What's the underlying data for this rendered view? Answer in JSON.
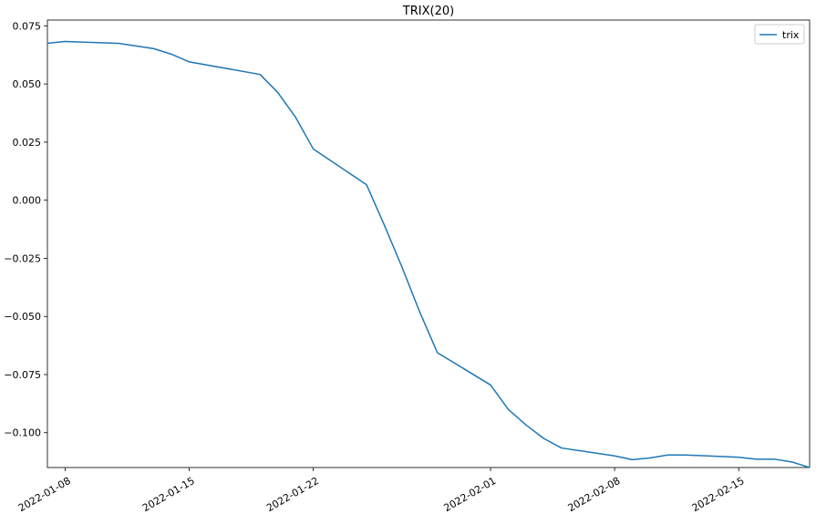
{
  "chart_data": {
    "type": "line",
    "title": "TRIX(20)",
    "xlabel": "",
    "ylabel": "",
    "x_axis_kind": "date",
    "xlim": [
      "2022-01-07",
      "2022-02-19"
    ],
    "ylim": [
      -0.115,
      0.0775
    ],
    "x_ticks": [
      "2022-01-08",
      "2022-01-15",
      "2022-01-22",
      "2022-02-01",
      "2022-02-08",
      "2022-02-15"
    ],
    "y_ticks": [
      0.075,
      0.05,
      0.025,
      0.0,
      -0.025,
      -0.05,
      -0.075,
      -0.1
    ],
    "y_tick_labels": [
      "0.075",
      "0.050",
      "0.025",
      "0.000",
      "−0.025",
      "−0.050",
      "−0.075",
      "−0.100"
    ],
    "legend": {
      "position": "top-right",
      "entries": [
        "trix"
      ]
    },
    "grid": false,
    "series": [
      {
        "name": "trix",
        "color": "#1f77b4",
        "points": [
          [
            "2022-01-07",
            0.0675
          ],
          [
            "2022-01-08",
            0.0683
          ],
          [
            "2022-01-11",
            0.0675
          ],
          [
            "2022-01-13",
            0.0652
          ],
          [
            "2022-01-14",
            0.0628
          ],
          [
            "2022-01-15",
            0.0595
          ],
          [
            "2022-01-19",
            0.0541
          ],
          [
            "2022-01-20",
            0.0463
          ],
          [
            "2022-01-21",
            0.0357
          ],
          [
            "2022-01-22",
            0.022
          ],
          [
            "2022-01-25",
            0.0067
          ],
          [
            "2022-01-26",
            -0.0106
          ],
          [
            "2022-01-27",
            -0.0287
          ],
          [
            "2022-01-28",
            -0.048
          ],
          [
            "2022-01-29",
            -0.0656
          ],
          [
            "2022-02-01",
            -0.0795
          ],
          [
            "2022-02-02",
            -0.09
          ],
          [
            "2022-02-03",
            -0.0967
          ],
          [
            "2022-02-04",
            -0.1025
          ],
          [
            "2022-02-05",
            -0.1066
          ],
          [
            "2022-02-08",
            -0.11
          ],
          [
            "2022-02-09",
            -0.1116
          ],
          [
            "2022-02-10",
            -0.1109
          ],
          [
            "2022-02-11",
            -0.1096
          ],
          [
            "2022-02-12",
            -0.1096
          ],
          [
            "2022-02-15",
            -0.1106
          ],
          [
            "2022-02-16",
            -0.1114
          ],
          [
            "2022-02-17",
            -0.1114
          ],
          [
            "2022-02-18",
            -0.1126
          ],
          [
            "2022-02-19",
            -0.115
          ]
        ]
      }
    ]
  }
}
